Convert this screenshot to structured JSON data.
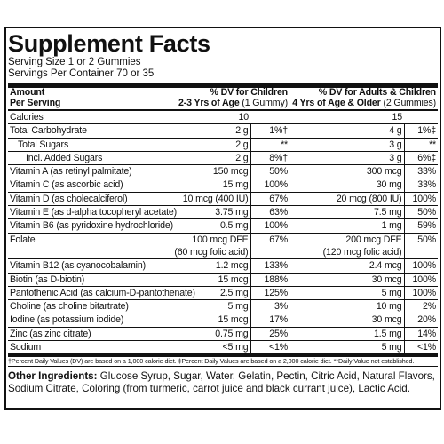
{
  "panel": {
    "title": "Supplement Facts",
    "serving_size": "Serving Size 1 or 2 Gummies",
    "servings_per_container": "Servings Per Container 70 or 35",
    "header": {
      "amount": "Amount",
      "per_serving": "Per Serving",
      "children_line1": "% DV for Children",
      "children_line2": "2-3 Yrs of Age",
      "children_note": "(1 Gummy)",
      "adults_line1": "% DV for Adults & Children",
      "adults_line2": "4 Yrs of Age & Older",
      "adults_note": "(2 Gummies)"
    },
    "rows": [
      {
        "name": "Calories",
        "child_amount": "10",
        "adult_amount": "15"
      },
      {
        "name": "Total Carbohydrate",
        "child_amount": "2 g",
        "child_dv": "1%†",
        "adult_amount": "4 g",
        "adult_dv": "1%‡"
      },
      {
        "name": "Total Sugars",
        "indent": 1,
        "child_amount": "2 g",
        "child_dv": "**",
        "adult_amount": "3 g",
        "adult_dv": "**"
      },
      {
        "name": "Incl. Added Sugars",
        "indent": 2,
        "child_amount": "2 g",
        "child_dv": "8%†",
        "adult_amount": "3 g",
        "adult_dv": "6%‡"
      },
      {
        "name": "Vitamin A (as retinyl palmitate)",
        "child_amount": "150 mcg",
        "child_dv": "50%",
        "adult_amount": "300 mcg",
        "adult_dv": "33%"
      },
      {
        "name": "Vitamin C (as ascorbic acid)",
        "child_amount": "15 mg",
        "child_dv": "100%",
        "adult_amount": "30 mg",
        "adult_dv": "33%"
      },
      {
        "name": "Vitamin D (as cholecalciferol)",
        "child_amount": "10 mcg (400 IU)",
        "child_dv": "67%",
        "adult_amount": "20 mcg (800 IU)",
        "adult_dv": "100%"
      },
      {
        "name": "Vitamin E (as d-alpha tocopheryl acetate)",
        "child_amount": "3.75 mg",
        "child_dv": "63%",
        "adult_amount": "7.5 mg",
        "adult_dv": "50%"
      },
      {
        "name": "Vitamin B6 (as pyridoxine hydrochloride)",
        "child_amount": "0.5 mg",
        "child_dv": "100%",
        "adult_amount": "1 mg",
        "adult_dv": "59%"
      },
      {
        "name": "Folate",
        "child_amount": "100 mcg DFE",
        "child_amount_note": "(60 mcg folic acid)",
        "child_dv": "67%",
        "adult_amount": "200 mcg DFE",
        "adult_amount_note": "(120 mcg folic acid)",
        "adult_dv": "50%"
      },
      {
        "name": "Vitamin B12 (as cyanocobalamin)",
        "child_amount": "1.2 mcg",
        "child_dv": "133%",
        "adult_amount": "2.4 mcg",
        "adult_dv": "100%"
      },
      {
        "name": "Biotin (as D-biotin)",
        "child_amount": "15 mcg",
        "child_dv": "188%",
        "adult_amount": "30 mcg",
        "adult_dv": "100%"
      },
      {
        "name": "Pantothenic Acid (as calcium-D-pantothenate)",
        "child_amount": "2.5 mg",
        "child_dv": "125%",
        "adult_amount": "5 mg",
        "adult_dv": "100%"
      },
      {
        "name": "Choline (as choline bitartrate)",
        "child_amount": "5 mg",
        "child_dv": "3%",
        "adult_amount": "10 mg",
        "adult_dv": "2%"
      },
      {
        "name": "Iodine (as potassium iodide)",
        "child_amount": "15 mcg",
        "child_dv": "17%",
        "adult_amount": "30 mcg",
        "adult_dv": "20%"
      },
      {
        "name": "Zinc (as zinc citrate)",
        "child_amount": "0.75 mg",
        "child_dv": "25%",
        "adult_amount": "1.5 mg",
        "adult_dv": "14%"
      },
      {
        "name": "Sodium",
        "child_amount": "<5 mg",
        "child_dv": "<1%",
        "adult_amount": "5 mg",
        "adult_dv": "<1%"
      }
    ],
    "footnote": "†Percent Daily Values (DV) are based on a 1,000 calorie diet. ‡Percent Daily Values are based on a 2,000 calorie diet. **Daily Value not established.",
    "other_ingredients_label": "Other Ingredients:",
    "other_ingredients": "Glucose Syrup, Sugar, Water, Gelatin, Pectin, Citric Acid, Natural Flavors, Sodium Citrate, Coloring (from turmeric, carrot juice and black currant juice), Lactic Acid."
  }
}
